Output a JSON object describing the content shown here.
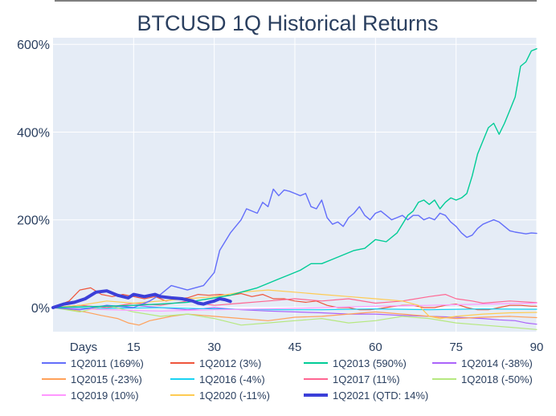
{
  "chart_data": {
    "type": "line",
    "title": "BTCUSD 1Q Historical Returns",
    "xlabel": "Days",
    "ylabel": "",
    "xlim": [
      0,
      90
    ],
    "ylim": [
      -55,
      615
    ],
    "x_ticks": [
      15,
      30,
      45,
      60,
      75,
      90
    ],
    "y_ticks": [
      0,
      200,
      400,
      600
    ],
    "y_tick_suffix": "%",
    "grid": true,
    "legend_position": "bottom",
    "series": [
      {
        "name": "1Q2011 (169%)",
        "color": "#636efa",
        "width": 1.4,
        "points": [
          [
            0,
            0
          ],
          [
            5,
            -5
          ],
          [
            10,
            5
          ],
          [
            15,
            0
          ],
          [
            18,
            15
          ],
          [
            20,
            30
          ],
          [
            22,
            50
          ],
          [
            25,
            40
          ],
          [
            28,
            50
          ],
          [
            29,
            65
          ],
          [
            30,
            80
          ],
          [
            31,
            130
          ],
          [
            33,
            170
          ],
          [
            35,
            200
          ],
          [
            36,
            225
          ],
          [
            38,
            215
          ],
          [
            39,
            240
          ],
          [
            40,
            230
          ],
          [
            41,
            270
          ],
          [
            42,
            255
          ],
          [
            43,
            268
          ],
          [
            44,
            265
          ],
          [
            45,
            260
          ],
          [
            46,
            255
          ],
          [
            47,
            260
          ],
          [
            48,
            230
          ],
          [
            49,
            225
          ],
          [
            50,
            245
          ],
          [
            51,
            205
          ],
          [
            52,
            190
          ],
          [
            53,
            195
          ],
          [
            54,
            185
          ],
          [
            55,
            205
          ],
          [
            56,
            215
          ],
          [
            57,
            230
          ],
          [
            58,
            210
          ],
          [
            59,
            200
          ],
          [
            60,
            215
          ],
          [
            61,
            220
          ],
          [
            62,
            210
          ],
          [
            63,
            200
          ],
          [
            64,
            205
          ],
          [
            65,
            210
          ],
          [
            66,
            200
          ],
          [
            67,
            210
          ],
          [
            68,
            210
          ],
          [
            69,
            200
          ],
          [
            70,
            205
          ],
          [
            71,
            200
          ],
          [
            72,
            215
          ],
          [
            73,
            210
          ],
          [
            74,
            195
          ],
          [
            75,
            185
          ],
          [
            76,
            170
          ],
          [
            77,
            160
          ],
          [
            78,
            165
          ],
          [
            79,
            180
          ],
          [
            80,
            190
          ],
          [
            81,
            195
          ],
          [
            82,
            200
          ],
          [
            83,
            195
          ],
          [
            84,
            185
          ],
          [
            85,
            175
          ],
          [
            86,
            172
          ],
          [
            87,
            170
          ],
          [
            88,
            168
          ],
          [
            89,
            170
          ],
          [
            90,
            169
          ]
        ]
      },
      {
        "name": "1Q2012 (3%)",
        "color": "#ef553b",
        "width": 1.2,
        "points": [
          [
            0,
            0
          ],
          [
            3,
            15
          ],
          [
            5,
            40
          ],
          [
            7,
            45
          ],
          [
            9,
            30
          ],
          [
            11,
            25
          ],
          [
            13,
            30
          ],
          [
            15,
            25
          ],
          [
            17,
            20
          ],
          [
            19,
            25
          ],
          [
            21,
            15
          ],
          [
            23,
            20
          ],
          [
            25,
            22
          ],
          [
            27,
            30
          ],
          [
            29,
            28
          ],
          [
            31,
            30
          ],
          [
            33,
            28
          ],
          [
            35,
            32
          ],
          [
            37,
            25
          ],
          [
            39,
            30
          ],
          [
            41,
            20
          ],
          [
            43,
            20
          ],
          [
            45,
            15
          ],
          [
            47,
            12
          ],
          [
            49,
            15
          ],
          [
            51,
            5
          ],
          [
            53,
            0
          ],
          [
            55,
            0
          ],
          [
            57,
            -5
          ],
          [
            59,
            -5
          ],
          [
            61,
            -2
          ],
          [
            63,
            2
          ],
          [
            65,
            5
          ],
          [
            67,
            5
          ],
          [
            69,
            0
          ],
          [
            71,
            0
          ],
          [
            73,
            5
          ],
          [
            75,
            8
          ],
          [
            77,
            0
          ],
          [
            79,
            -5
          ],
          [
            81,
            -5
          ],
          [
            83,
            0
          ],
          [
            85,
            5
          ],
          [
            87,
            5
          ],
          [
            89,
            3
          ],
          [
            90,
            3
          ]
        ]
      },
      {
        "name": "1Q2013 (590%)",
        "color": "#00cc96",
        "width": 1.4,
        "points": [
          [
            0,
            0
          ],
          [
            5,
            2
          ],
          [
            10,
            3
          ],
          [
            15,
            5
          ],
          [
            20,
            8
          ],
          [
            25,
            12
          ],
          [
            28,
            18
          ],
          [
            30,
            22
          ],
          [
            33,
            28
          ],
          [
            35,
            35
          ],
          [
            38,
            45
          ],
          [
            40,
            55
          ],
          [
            42,
            65
          ],
          [
            44,
            75
          ],
          [
            46,
            85
          ],
          [
            48,
            100
          ],
          [
            50,
            100
          ],
          [
            52,
            110
          ],
          [
            54,
            120
          ],
          [
            56,
            130
          ],
          [
            58,
            135
          ],
          [
            60,
            155
          ],
          [
            62,
            150
          ],
          [
            64,
            170
          ],
          [
            65,
            190
          ],
          [
            66,
            210
          ],
          [
            67,
            220
          ],
          [
            68,
            240
          ],
          [
            69,
            245
          ],
          [
            70,
            235
          ],
          [
            71,
            245
          ],
          [
            72,
            225
          ],
          [
            73,
            240
          ],
          [
            74,
            250
          ],
          [
            75,
            245
          ],
          [
            76,
            250
          ],
          [
            77,
            260
          ],
          [
            78,
            300
          ],
          [
            79,
            350
          ],
          [
            80,
            380
          ],
          [
            81,
            410
          ],
          [
            82,
            420
          ],
          [
            83,
            395
          ],
          [
            84,
            420
          ],
          [
            85,
            450
          ],
          [
            86,
            480
          ],
          [
            87,
            550
          ],
          [
            88,
            560
          ],
          [
            89,
            585
          ],
          [
            90,
            590
          ]
        ]
      },
      {
        "name": "1Q2014 (-38%)",
        "color": "#ab63fa",
        "width": 1.2,
        "points": [
          [
            0,
            0
          ],
          [
            5,
            5
          ],
          [
            10,
            0
          ],
          [
            15,
            5
          ],
          [
            20,
            0
          ],
          [
            25,
            -5
          ],
          [
            30,
            0
          ],
          [
            35,
            -5
          ],
          [
            40,
            -8
          ],
          [
            45,
            -10
          ],
          [
            50,
            -12
          ],
          [
            55,
            -15
          ],
          [
            60,
            -15
          ],
          [
            65,
            -18
          ],
          [
            70,
            -20
          ],
          [
            75,
            -22
          ],
          [
            80,
            -25
          ],
          [
            83,
            -28
          ],
          [
            86,
            -30
          ],
          [
            88,
            -35
          ],
          [
            90,
            -38
          ]
        ]
      },
      {
        "name": "1Q2015 (-23%)",
        "color": "#ffa15a",
        "width": 1.2,
        "points": [
          [
            0,
            0
          ],
          [
            3,
            -5
          ],
          [
            6,
            -10
          ],
          [
            9,
            -18
          ],
          [
            12,
            -25
          ],
          [
            14,
            -35
          ],
          [
            16,
            -40
          ],
          [
            18,
            -30
          ],
          [
            20,
            -25
          ],
          [
            22,
            -20
          ],
          [
            25,
            -15
          ],
          [
            30,
            -20
          ],
          [
            35,
            -25
          ],
          [
            40,
            -30
          ],
          [
            45,
            -22
          ],
          [
            50,
            -20
          ],
          [
            55,
            -15
          ],
          [
            60,
            -10
          ],
          [
            65,
            -15
          ],
          [
            70,
            -20
          ],
          [
            75,
            -25
          ],
          [
            80,
            -22
          ],
          [
            85,
            -20
          ],
          [
            90,
            -23
          ]
        ]
      },
      {
        "name": "1Q2016 (-4%)",
        "color": "#19d3f3",
        "width": 1.2,
        "points": [
          [
            0,
            0
          ],
          [
            10,
            -2
          ],
          [
            20,
            0
          ],
          [
            30,
            -3
          ],
          [
            40,
            -5
          ],
          [
            50,
            -5
          ],
          [
            60,
            -3
          ],
          [
            70,
            -5
          ],
          [
            80,
            -3
          ],
          [
            90,
            -4
          ]
        ]
      },
      {
        "name": "1Q2017 (11%)",
        "color": "#ff6692",
        "width": 1.2,
        "points": [
          [
            0,
            0
          ],
          [
            5,
            5
          ],
          [
            10,
            0
          ],
          [
            15,
            10
          ],
          [
            20,
            5
          ],
          [
            25,
            15
          ],
          [
            30,
            5
          ],
          [
            35,
            10
          ],
          [
            40,
            15
          ],
          [
            45,
            20
          ],
          [
            50,
            15
          ],
          [
            55,
            20
          ],
          [
            60,
            10
          ],
          [
            65,
            15
          ],
          [
            70,
            25
          ],
          [
            73,
            30
          ],
          [
            75,
            20
          ],
          [
            78,
            15
          ],
          [
            80,
            10
          ],
          [
            85,
            15
          ],
          [
            90,
            11
          ]
        ]
      },
      {
        "name": "1Q2018 (-50%)",
        "color": "#b6e880",
        "width": 1.2,
        "points": [
          [
            0,
            0
          ],
          [
            5,
            -10
          ],
          [
            10,
            5
          ],
          [
            15,
            -10
          ],
          [
            20,
            -20
          ],
          [
            25,
            -15
          ],
          [
            30,
            -25
          ],
          [
            35,
            -40
          ],
          [
            40,
            -35
          ],
          [
            45,
            -30
          ],
          [
            50,
            -25
          ],
          [
            55,
            -35
          ],
          [
            60,
            -30
          ],
          [
            65,
            -20
          ],
          [
            70,
            -25
          ],
          [
            75,
            -35
          ],
          [
            80,
            -40
          ],
          [
            85,
            -45
          ],
          [
            90,
            -50
          ]
        ]
      },
      {
        "name": "1Q2019 (10%)",
        "color": "#ff97ff",
        "width": 1.2,
        "points": [
          [
            0,
            0
          ],
          [
            10,
            -5
          ],
          [
            20,
            -8
          ],
          [
            30,
            -5
          ],
          [
            40,
            -3
          ],
          [
            50,
            0
          ],
          [
            60,
            3
          ],
          [
            70,
            5
          ],
          [
            80,
            8
          ],
          [
            90,
            10
          ]
        ]
      },
      {
        "name": "1Q2020 (-11%)",
        "color": "#fecb52",
        "width": 1.2,
        "points": [
          [
            0,
            0
          ],
          [
            5,
            5
          ],
          [
            10,
            15
          ],
          [
            15,
            10
          ],
          [
            20,
            15
          ],
          [
            25,
            20
          ],
          [
            30,
            25
          ],
          [
            35,
            35
          ],
          [
            40,
            40
          ],
          [
            45,
            35
          ],
          [
            50,
            30
          ],
          [
            55,
            25
          ],
          [
            60,
            20
          ],
          [
            65,
            15
          ],
          [
            68,
            5
          ],
          [
            70,
            -20
          ],
          [
            72,
            -25
          ],
          [
            75,
            -20
          ],
          [
            80,
            -15
          ],
          [
            85,
            -12
          ],
          [
            90,
            -11
          ]
        ]
      },
      {
        "name": "1Q2021 (QTD: 14%)",
        "color": "#3b3fd8",
        "width": 4,
        "points": [
          [
            0,
            0
          ],
          [
            2,
            8
          ],
          [
            4,
            12
          ],
          [
            6,
            20
          ],
          [
            8,
            35
          ],
          [
            10,
            38
          ],
          [
            12,
            28
          ],
          [
            14,
            22
          ],
          [
            15,
            30
          ],
          [
            17,
            25
          ],
          [
            19,
            30
          ],
          [
            20,
            25
          ],
          [
            22,
            22
          ],
          [
            24,
            20
          ],
          [
            26,
            15
          ],
          [
            27,
            10
          ],
          [
            28,
            8
          ],
          [
            29,
            12
          ],
          [
            30,
            15
          ],
          [
            31,
            20
          ],
          [
            32,
            18
          ],
          [
            33,
            14
          ]
        ]
      }
    ]
  }
}
